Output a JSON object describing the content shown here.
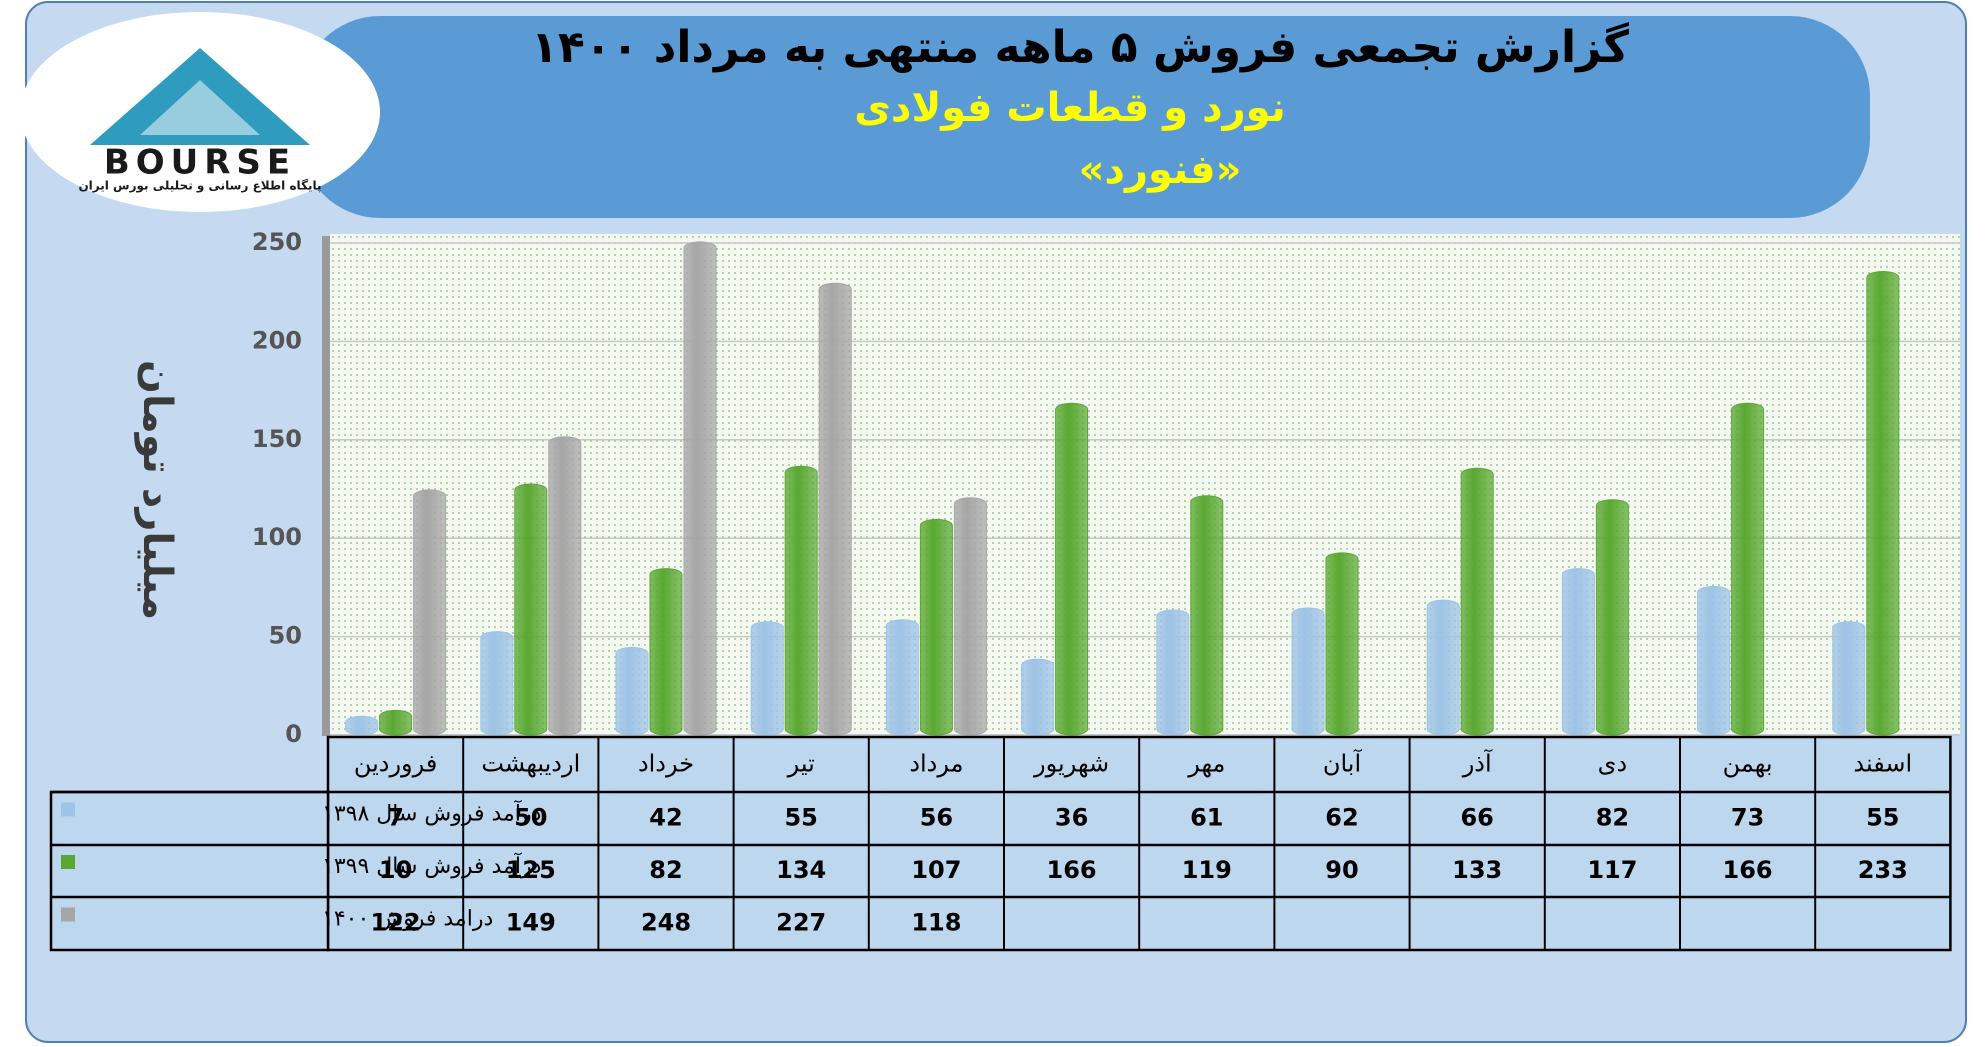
{
  "logo": {
    "name": "BOURSE",
    "tagline": "پایگاه اطلاع رسانی و تحلیلی بورس ایران"
  },
  "chart_data": {
    "type": "bar",
    "title": "گزارش تجمعی فروش ۵ ماهه منتهی به مرداد ۱۴۰۰",
    "subtitle": "نورد و قطعات فولادی",
    "symbol": "«فنورد»",
    "y_label": "میلیارد تومان",
    "categories": [
      "فروردین",
      "اردیبهشت",
      "خرداد",
      "تیر",
      "مرداد",
      "شهریور",
      "مهر",
      "آبان",
      "آذر",
      "دی",
      "بهمن",
      "اسفند"
    ],
    "series": [
      {
        "name": "درآمد فروش سال ۱۳۹۸",
        "color": "#9dc3e6",
        "values": [
          7,
          50,
          42,
          55,
          56,
          36,
          61,
          62,
          66,
          82,
          73,
          55
        ]
      },
      {
        "name": "درآمد فروش سال ۱۳۹۹",
        "color": "#5aa832",
        "values": [
          10,
          125,
          82,
          134,
          107,
          166,
          119,
          90,
          133,
          117,
          166,
          233
        ]
      },
      {
        "name": "درامد فروش ۱۴۰۰",
        "color": "#a6a6a6",
        "values": [
          122,
          149,
          248,
          227,
          118,
          null,
          null,
          null,
          null,
          null,
          null,
          null
        ]
      }
    ],
    "ylim": [
      0,
      250
    ],
    "yticks": [
      0,
      50,
      100,
      150,
      200,
      250
    ],
    "grid": true
  }
}
